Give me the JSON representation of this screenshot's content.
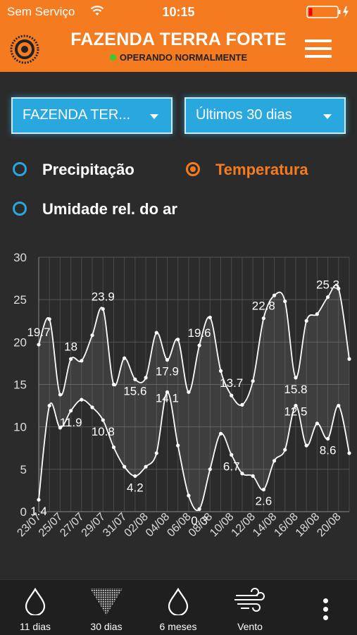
{
  "status_bar": {
    "carrier": "Sem Serviço",
    "time": "10:15"
  },
  "header": {
    "title": "FAZENDA TERRA FORTE",
    "status": "OPERANDO NORMALMENTE"
  },
  "filters": {
    "farm": "FAZENDA TER...",
    "period": "Últimos 30 dias"
  },
  "series_options": [
    {
      "label": "Precipitação",
      "checked": false
    },
    {
      "label": "Temperatura",
      "checked": true
    },
    {
      "label": "Umidade rel. do ar",
      "checked": false
    }
  ],
  "chart_data": {
    "type": "line",
    "ylim": [
      0,
      30
    ],
    "yticks": [
      0,
      5,
      10,
      15,
      20,
      25,
      30
    ],
    "x_tick_labels": [
      "23/07",
      "25/07",
      "27/07",
      "29/07",
      "31/07",
      "02/08",
      "04/08",
      "06/08",
      "08/08",
      "10/08",
      "12/08",
      "14/08",
      "16/08",
      "18/08",
      "20/08"
    ],
    "series": [
      {
        "values": [
          19.7,
          22.7,
          13.8,
          18,
          17.8,
          20.8,
          23.9,
          15,
          18.1,
          15.6,
          15.8,
          21.1,
          17.9,
          20.3,
          14.1,
          19.6,
          22.9,
          16.6,
          13.7,
          12.6,
          15.4,
          22.8,
          25.5,
          24.8,
          15.8,
          22.5,
          23.3,
          25.3,
          26.3,
          18
        ],
        "labels": [
          {
            "i": 0,
            "text": "19.7"
          },
          {
            "i": 3,
            "text": "18"
          },
          {
            "i": 6,
            "text": "23.9"
          },
          {
            "i": 9,
            "text": "15.6"
          },
          {
            "i": 12,
            "text": "17.9"
          },
          {
            "i": 15,
            "text": "19.6"
          },
          {
            "i": 18,
            "text": "13.7"
          },
          {
            "i": 21,
            "text": "22.8"
          },
          {
            "i": 24,
            "text": "15.8"
          },
          {
            "i": 27,
            "text": "25.3"
          }
        ]
      },
      {
        "values": [
          1.4,
          12.5,
          9.9,
          11.9,
          13.2,
          12.3,
          10.8,
          7.6,
          5.3,
          4.2,
          5.3,
          6.9,
          14.1,
          7.8,
          1.9,
          0.3,
          5,
          9.2,
          6.7,
          4.5,
          4.2,
          2.6,
          6,
          7.3,
          12.5,
          7.8,
          10.4,
          8.6,
          12.5,
          6.9
        ],
        "labels": [
          {
            "i": 0,
            "text": "1.4"
          },
          {
            "i": 3,
            "text": "11.9"
          },
          {
            "i": 6,
            "text": "10.8"
          },
          {
            "i": 9,
            "text": "4.2"
          },
          {
            "i": 12,
            "text": "14.1"
          },
          {
            "i": 15,
            "text": "0.3"
          },
          {
            "i": 18,
            "text": "6.7"
          },
          {
            "i": 21,
            "text": "2.6"
          },
          {
            "i": 24,
            "text": "12.5"
          },
          {
            "i": 27,
            "text": "8.6"
          }
        ]
      }
    ]
  },
  "tabs": [
    {
      "label": "11 dias",
      "icon": "drop-icon"
    },
    {
      "label": "30 dias",
      "icon": "dotted-funnel-icon"
    },
    {
      "label": "6 meses",
      "icon": "drop-icon"
    },
    {
      "label": "Vento",
      "icon": "wind-icon"
    }
  ]
}
